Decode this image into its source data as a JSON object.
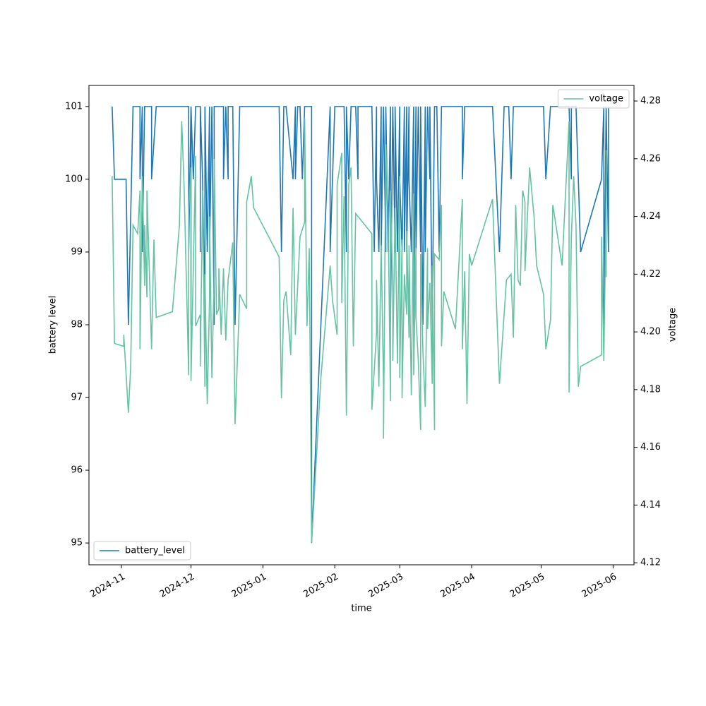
{
  "chart_data": {
    "type": "line",
    "x_label": "time",
    "y_label": "battery level",
    "y2_label": "voltage",
    "xlim": [
      "2024-10-18",
      "2025-06-10"
    ],
    "xticks": [
      {
        "value": "2024-11-01",
        "label": "2024-11"
      },
      {
        "value": "2024-12-01",
        "label": "2024-12"
      },
      {
        "value": "2025-01-01",
        "label": "2025-01"
      },
      {
        "value": "2025-02-01",
        "label": "2025-02"
      },
      {
        "value": "2025-03-01",
        "label": "2025-03"
      },
      {
        "value": "2025-04-01",
        "label": "2025-04"
      },
      {
        "value": "2025-05-01",
        "label": "2025-05"
      },
      {
        "value": "2025-06-01",
        "label": "2025-06"
      }
    ],
    "ylim": [
      94.7,
      101.29
    ],
    "yticks": [
      95,
      96,
      97,
      98,
      99,
      100,
      101
    ],
    "y2lim": [
      4.1193,
      4.2854
    ],
    "y2ticks": [
      4.12,
      4.14,
      4.16,
      4.18,
      {
        "value": 4.2,
        "label": "4.20"
      },
      4.22,
      4.24,
      4.26,
      4.28
    ],
    "series": [
      {
        "name": "battery_level",
        "color": "#1f77b4",
        "legend": "lower left",
        "x": [
          "2024-10-28",
          "2024-10-29",
          "2024-11-03",
          "2024-11-04",
          "2024-11-06",
          "2024-11-09",
          "2024-11-09",
          "2024-11-10",
          "2024-11-10",
          "2024-11-11",
          "2024-11-14",
          "2024-11-14",
          "2024-11-16",
          "2024-11-30",
          "2024-11-30",
          "2024-12-01",
          "2024-12-01",
          "2024-12-01",
          "2024-12-02",
          "2024-12-03",
          "2024-12-05",
          "2024-12-05",
          "2024-12-05",
          "2024-12-06",
          "2024-12-07",
          "2024-12-07",
          "2024-12-08",
          "2024-12-09",
          "2024-12-09",
          "2024-12-10",
          "2024-12-11",
          "2024-12-11",
          "2024-12-15",
          "2024-12-15",
          "2024-12-16",
          "2024-12-17",
          "2024-12-17",
          "2024-12-19",
          "2024-12-20",
          "2024-12-22",
          "2025-01-08",
          "2025-01-09",
          "2025-01-10",
          "2025-01-11",
          "2025-01-14",
          "2025-01-15",
          "2025-01-15",
          "2025-01-16",
          "2025-01-17",
          "2025-01-18",
          "2025-01-19",
          "2025-01-22",
          "2025-01-22",
          "2025-01-30",
          "2025-01-30",
          "2025-02-01",
          "2025-02-05",
          "2025-02-06",
          "2025-02-06",
          "2025-02-07",
          "2025-02-08",
          "2025-02-10",
          "2025-02-11",
          "2025-02-11",
          "2025-02-17",
          "2025-02-18",
          "2025-02-19",
          "2025-02-19",
          "2025-02-20",
          "2025-02-21",
          "2025-02-21",
          "2025-02-22",
          "2025-02-23",
          "2025-02-23",
          "2025-02-24",
          "2025-02-25",
          "2025-02-25",
          "2025-02-26",
          "2025-02-27",
          "2025-02-27",
          "2025-02-28",
          "2025-03-01",
          "2025-03-01",
          "2025-03-02",
          "2025-03-03",
          "2025-03-03",
          "2025-03-04",
          "2025-03-04",
          "2025-03-05",
          "2025-03-05",
          "2025-03-06",
          "2025-03-07",
          "2025-03-07",
          "2025-03-08",
          "2025-03-08",
          "2025-03-09",
          "2025-03-10",
          "2025-03-10",
          "2025-03-11",
          "2025-03-12",
          "2025-03-12",
          "2025-03-13",
          "2025-03-14",
          "2025-03-14",
          "2025-03-15",
          "2025-03-16",
          "2025-03-17",
          "2025-03-18",
          "2025-03-19",
          "2025-03-28",
          "2025-03-28",
          "2025-03-29",
          "2025-04-01",
          "2025-04-10",
          "2025-04-13",
          "2025-04-15",
          "2025-04-17",
          "2025-04-18",
          "2025-04-19",
          "2025-05-02",
          "2025-05-03",
          "2025-05-05",
          "2025-05-13",
          "2025-05-14",
          "2025-05-14",
          "2025-05-16",
          "2025-05-18",
          "2025-05-27",
          "2025-05-28",
          "2025-05-28",
          "2025-05-29",
          "2025-05-30",
          "2025-05-30"
        ],
        "values": [
          101,
          100,
          100,
          98,
          101,
          101,
          100,
          101,
          99,
          101,
          101,
          100,
          101,
          101,
          99,
          101,
          98,
          101,
          100,
          101,
          101,
          99,
          101,
          100,
          98,
          101,
          99,
          101,
          99,
          101,
          98,
          101,
          101,
          100,
          101,
          100,
          101,
          101,
          98,
          101,
          101,
          99,
          101,
          101,
          100,
          101,
          100,
          101,
          101,
          100,
          101,
          101,
          95,
          101,
          99,
          101,
          101,
          99,
          101,
          100,
          101,
          101,
          100,
          101,
          101,
          99,
          101,
          100,
          99,
          101,
          99,
          101,
          99,
          101,
          99,
          101,
          98,
          101,
          99,
          101,
          99,
          101,
          100,
          99,
          101,
          99,
          101,
          99,
          101,
          100,
          99,
          101,
          98,
          101,
          99,
          101,
          99,
          101,
          98,
          101,
          99,
          101,
          100,
          101,
          98,
          101,
          101,
          99,
          101,
          101,
          100,
          101,
          101,
          101,
          99,
          101,
          101,
          100,
          101,
          101,
          100,
          101,
          101,
          100,
          101,
          101,
          99,
          100,
          101,
          98,
          101,
          99,
          101
        ]
      },
      {
        "name": "voltage",
        "color": "#66c2a5",
        "axis": "y2",
        "legend": "upper right",
        "x": [
          "2024-10-28",
          "2024-10-29",
          "2024-11-02",
          "2024-11-02",
          "2024-11-04",
          "2024-11-05",
          "2024-11-06",
          "2024-11-08",
          "2024-11-09",
          "2024-11-09",
          "2024-11-10",
          "2024-11-11",
          "2024-11-11",
          "2024-11-12",
          "2024-11-12",
          "2024-11-13",
          "2024-11-14",
          "2024-11-15",
          "2024-11-16",
          "2024-11-23",
          "2024-11-26",
          "2024-11-27",
          "2024-11-28",
          "2024-11-30",
          "2024-11-30",
          "2024-12-01",
          "2024-12-01",
          "2024-12-03",
          "2024-12-03",
          "2024-12-05",
          "2024-12-05",
          "2024-12-06",
          "2024-12-07",
          "2024-12-07",
          "2024-12-08",
          "2024-12-09",
          "2024-12-09",
          "2024-12-10",
          "2024-12-11",
          "2024-12-11",
          "2024-12-12",
          "2024-12-13",
          "2024-12-13",
          "2024-12-14",
          "2024-12-15",
          "2024-12-16",
          "2024-12-17",
          "2024-12-19",
          "2024-12-20",
          "2024-12-22",
          "2024-12-25",
          "2024-12-25",
          "2024-12-27",
          "2024-12-28",
          "2025-01-08",
          "2025-01-09",
          "2025-01-10",
          "2025-01-11",
          "2025-01-13",
          "2025-01-14",
          "2025-01-15",
          "2025-01-17",
          "2025-01-19",
          "2025-01-19",
          "2025-01-20",
          "2025-01-21",
          "2025-01-22",
          "2025-01-26",
          "2025-01-30",
          "2025-01-31",
          "2025-02-02",
          "2025-02-02",
          "2025-02-04",
          "2025-02-04",
          "2025-02-05",
          "2025-02-06",
          "2025-02-07",
          "2025-02-08",
          "2025-02-09",
          "2025-02-10",
          "2025-02-12",
          "2025-02-17",
          "2025-02-17",
          "2025-02-19",
          "2025-02-19",
          "2025-02-20",
          "2025-02-21",
          "2025-02-22",
          "2025-02-22",
          "2025-02-23",
          "2025-02-24",
          "2025-02-25",
          "2025-02-25",
          "2025-02-26",
          "2025-02-26",
          "2025-02-27",
          "2025-02-28",
          "2025-03-01",
          "2025-03-01",
          "2025-03-02",
          "2025-03-02",
          "2025-03-03",
          "2025-03-04",
          "2025-03-04",
          "2025-03-05",
          "2025-03-05",
          "2025-03-06",
          "2025-03-07",
          "2025-03-07",
          "2025-03-08",
          "2025-03-08",
          "2025-03-09",
          "2025-03-10",
          "2025-03-10",
          "2025-03-11",
          "2025-03-12",
          "2025-03-13",
          "2025-03-13",
          "2025-03-14",
          "2025-03-15",
          "2025-03-15",
          "2025-03-16",
          "2025-03-16",
          "2025-03-18",
          "2025-03-19",
          "2025-03-19",
          "2025-03-20",
          "2025-03-25",
          "2025-03-28",
          "2025-03-28",
          "2025-03-29",
          "2025-03-30",
          "2025-03-31",
          "2025-04-01",
          "2025-04-10",
          "2025-04-13",
          "2025-04-16",
          "2025-04-18",
          "2025-04-19",
          "2025-04-20",
          "2025-04-21",
          "2025-04-22",
          "2025-04-23",
          "2025-04-24",
          "2025-04-24",
          "2025-04-26",
          "2025-04-28",
          "2025-04-29",
          "2025-05-02",
          "2025-05-03",
          "2025-05-05",
          "2025-05-06",
          "2025-05-10",
          "2025-05-13",
          "2025-05-13",
          "2025-05-14",
          "2025-05-15",
          "2025-05-16",
          "2025-05-17",
          "2025-05-18",
          "2025-05-27",
          "2025-05-27",
          "2025-05-28",
          "2025-05-29",
          "2025-05-29",
          "2025-05-29"
        ],
        "values": [
          4.254,
          4.196,
          4.195,
          4.199,
          4.172,
          4.188,
          4.237,
          4.234,
          4.249,
          4.194,
          4.254,
          4.216,
          4.237,
          4.212,
          4.249,
          4.222,
          4.194,
          4.232,
          4.205,
          4.207,
          4.237,
          4.273,
          4.251,
          4.185,
          4.242,
          4.257,
          4.183,
          4.261,
          4.202,
          4.206,
          4.188,
          4.249,
          4.181,
          4.22,
          4.175,
          4.212,
          4.24,
          4.184,
          4.22,
          4.26,
          4.206,
          4.208,
          4.222,
          4.199,
          4.222,
          4.197,
          4.218,
          4.231,
          4.168,
          4.213,
          4.208,
          4.245,
          4.254,
          4.243,
          4.226,
          4.177,
          4.211,
          4.214,
          4.192,
          4.243,
          4.199,
          4.233,
          4.238,
          4.274,
          4.202,
          4.229,
          4.127,
          4.184,
          4.223,
          4.211,
          4.199,
          4.251,
          4.262,
          4.21,
          4.247,
          4.171,
          4.251,
          4.257,
          4.195,
          4.241,
          4.239,
          4.234,
          4.173,
          4.2,
          4.218,
          4.181,
          4.23,
          4.182,
          4.163,
          4.265,
          4.24,
          4.176,
          4.249,
          4.214,
          4.19,
          4.243,
          4.189,
          4.254,
          4.184,
          4.232,
          4.177,
          4.22,
          4.206,
          4.235,
          4.198,
          4.23,
          4.178,
          4.248,
          4.185,
          4.229,
          4.205,
          4.19,
          4.166,
          4.227,
          4.193,
          4.174,
          4.229,
          4.201,
          4.217,
          4.182,
          4.223,
          4.166,
          4.227,
          4.225,
          4.244,
          4.195,
          4.214,
          4.201,
          4.246,
          4.194,
          4.221,
          4.175,
          4.227,
          4.223,
          4.246,
          4.182,
          4.218,
          4.22,
          4.198,
          4.244,
          4.218,
          4.216,
          4.249,
          4.245,
          4.221,
          4.257,
          4.239,
          4.223,
          4.213,
          4.194,
          4.204,
          4.244,
          4.223,
          4.273,
          4.179,
          4.233,
          4.254,
          4.237,
          4.181,
          4.188,
          4.192,
          4.233,
          4.19,
          4.246,
          4.263,
          4.219
        ]
      }
    ]
  }
}
